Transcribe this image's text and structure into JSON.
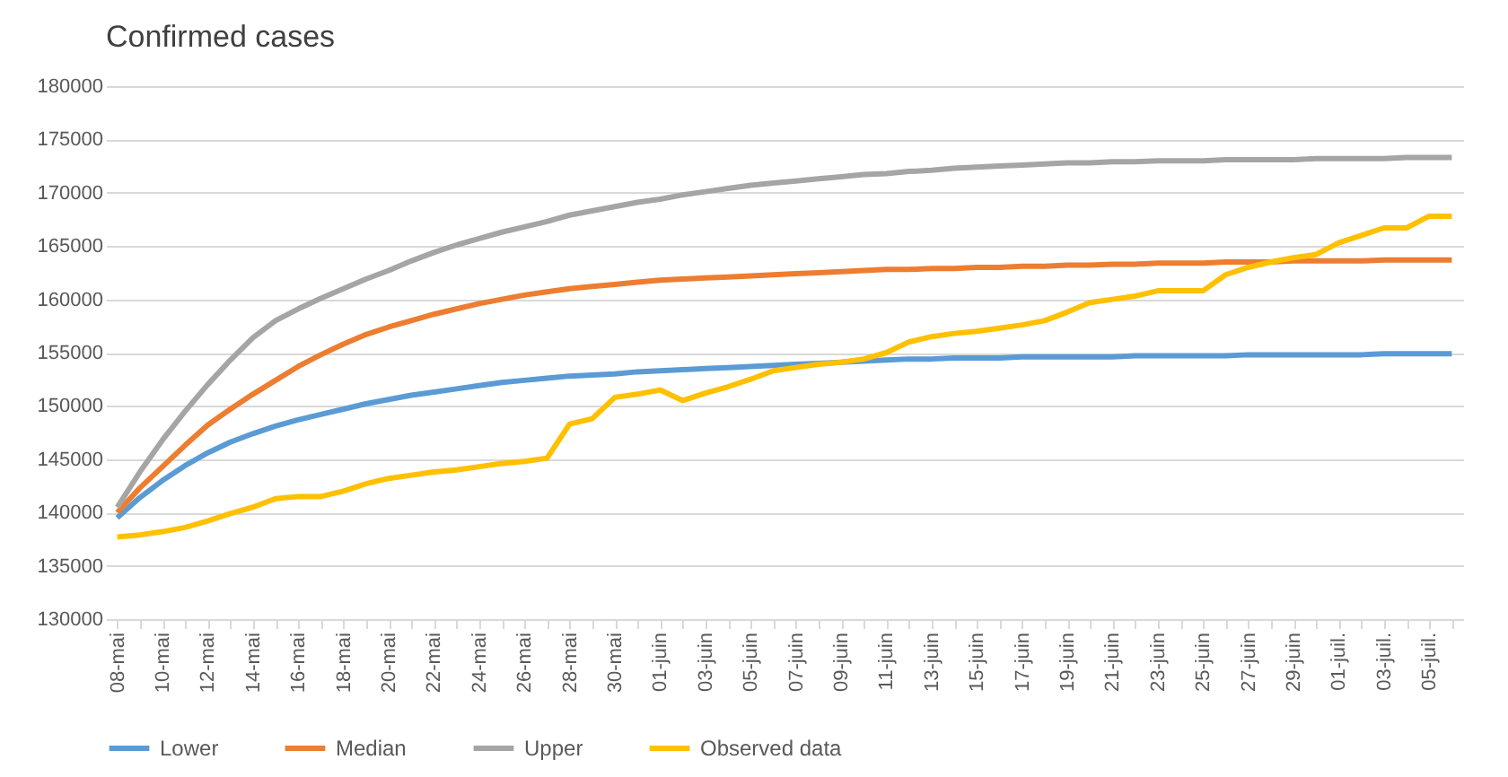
{
  "chart_data": {
    "type": "line",
    "title": "Confirmed cases",
    "categories": [
      "08-mai",
      null,
      "10-mai",
      null,
      "12-mai",
      null,
      "14-mai",
      null,
      "16-mai",
      null,
      "18-mai",
      null,
      "20-mai",
      null,
      "22-mai",
      null,
      "24-mai",
      null,
      "26-mai",
      null,
      "28-mai",
      null,
      "30-mai",
      null,
      "01-juin",
      null,
      "03-juin",
      null,
      "05-juin",
      null,
      "07-juin",
      null,
      "09-juin",
      null,
      "11-juin",
      null,
      "13-juin",
      null,
      "15-juin",
      null,
      "17-juin",
      null,
      "19-juin",
      null,
      "21-juin",
      null,
      "23-juin",
      null,
      "25-juin",
      null,
      "27-juin",
      null,
      "29-juin",
      null,
      "01-juil.",
      null,
      "03-juil.",
      null,
      "05-juil.",
      null
    ],
    "series": [
      {
        "name": "Lower",
        "color": "#5b9bd5",
        "values": [
          139500,
          141400,
          143000,
          144400,
          145600,
          146600,
          147400,
          148100,
          148700,
          149200,
          149700,
          150200,
          150600,
          151000,
          151300,
          151600,
          151900,
          152200,
          152400,
          152600,
          152800,
          152900,
          153000,
          153200,
          153300,
          153400,
          153500,
          153600,
          153700,
          153800,
          153900,
          154000,
          154100,
          154200,
          154300,
          154400,
          154400,
          154500,
          154500,
          154500,
          154600,
          154600,
          154600,
          154600,
          154600,
          154700,
          154700,
          154700,
          154700,
          154700,
          154800,
          154800,
          154800,
          154800,
          154800,
          154800,
          154900,
          154900,
          154900,
          154900
        ]
      },
      {
        "name": "Median",
        "color": "#ed7d31",
        "values": [
          140000,
          142300,
          144300,
          146300,
          148200,
          149700,
          151100,
          152400,
          153700,
          154800,
          155800,
          156700,
          157400,
          158000,
          158600,
          159100,
          159600,
          160000,
          160400,
          160700,
          161000,
          161200,
          161400,
          161600,
          161800,
          161900,
          162000,
          162100,
          162200,
          162300,
          162400,
          162500,
          162600,
          162700,
          162800,
          162800,
          162900,
          162900,
          163000,
          163000,
          163100,
          163100,
          163200,
          163200,
          163300,
          163300,
          163400,
          163400,
          163400,
          163500,
          163500,
          163500,
          163600,
          163600,
          163600,
          163600,
          163700,
          163700,
          163700,
          163700
        ]
      },
      {
        "name": "Upper",
        "color": "#a5a5a5",
        "values": [
          140500,
          143800,
          146800,
          149500,
          152000,
          154300,
          156400,
          158000,
          159100,
          160100,
          161000,
          161900,
          162700,
          163600,
          164400,
          165100,
          165700,
          166300,
          166800,
          167300,
          167900,
          168300,
          168700,
          169100,
          169400,
          169800,
          170100,
          170400,
          170700,
          170900,
          171100,
          171300,
          171500,
          171700,
          171800,
          172000,
          172100,
          172300,
          172400,
          172500,
          172600,
          172700,
          172800,
          172800,
          172900,
          172900,
          173000,
          173000,
          173000,
          173100,
          173100,
          173100,
          173100,
          173200,
          173200,
          173200,
          173200,
          173300,
          173300,
          173300
        ]
      },
      {
        "name": "Observed data",
        "color": "#ffc000",
        "values": [
          137700,
          137900,
          138200,
          138600,
          139200,
          139900,
          140500,
          141300,
          141500,
          141500,
          142000,
          142700,
          143200,
          143500,
          143800,
          144000,
          144300,
          144600,
          144800,
          145100,
          148300,
          148800,
          150800,
          151100,
          151500,
          150500,
          151200,
          151800,
          152500,
          153300,
          153600,
          153900,
          154100,
          154400,
          155000,
          156000,
          156500,
          156800,
          157000,
          157300,
          157600,
          158000,
          158800,
          159700,
          160000,
          160300,
          160800,
          160800,
          160800,
          162300,
          163000,
          163500,
          163900,
          164200,
          165300,
          166000,
          166700,
          166700,
          167800,
          167800
        ]
      }
    ],
    "ylim": [
      130000,
      180000
    ],
    "yticks": [
      130000,
      135000,
      140000,
      145000,
      150000,
      155000,
      160000,
      165000,
      170000,
      175000,
      180000
    ],
    "grid": "y",
    "legend": "bottom",
    "marker": "none",
    "line_style": "solid"
  }
}
